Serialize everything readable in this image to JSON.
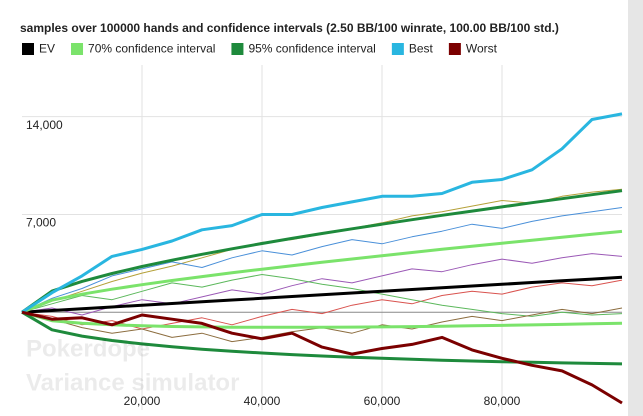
{
  "chart_data": {
    "type": "line",
    "title": "samples over 100000 hands and confidence intervals (2.50 BB/100 winrate, 100.00 BB/100 std.)",
    "watermark": [
      "Pokerdope",
      "Variance simulator"
    ],
    "x": [
      0,
      5000,
      10000,
      15000,
      20000,
      25000,
      30000,
      35000,
      40000,
      45000,
      50000,
      55000,
      60000,
      65000,
      70000,
      75000,
      80000,
      85000,
      90000,
      95000,
      100000
    ],
    "xlim": [
      0,
      100000
    ],
    "xticks": [
      {
        "value": 20000,
        "label": "20,000"
      },
      {
        "value": 40000,
        "label": "40,000"
      },
      {
        "value": 60000,
        "label": "60,000"
      },
      {
        "value": 80000,
        "label": "80,000"
      }
    ],
    "ylim": [
      -7000,
      17700
    ],
    "yticks": [
      {
        "value": 7000,
        "label": "7,000"
      },
      {
        "value": 14000,
        "label": "14,000"
      }
    ],
    "grid": true,
    "series": [
      {
        "color": "#b5a13a",
        "values": [
          0,
          800,
          1500,
          2200,
          2800,
          3300,
          3900,
          4500,
          5000,
          5200,
          5600,
          6000,
          6400,
          6900,
          7200,
          7600,
          8000,
          7800,
          8300,
          8600,
          8800
        ]
      },
      {
        "color": "#9b59b6",
        "values": [
          0,
          300,
          -200,
          400,
          900,
          600,
          1100,
          1600,
          1300,
          1900,
          2400,
          2100,
          2600,
          3100,
          2900,
          3400,
          3800,
          3500,
          3900,
          4200,
          4000
        ]
      },
      {
        "color": "#d9534f",
        "values": [
          0,
          -300,
          -900,
          -600,
          -1200,
          -800,
          -400,
          -900,
          -300,
          200,
          -100,
          500,
          900,
          600,
          1200,
          1500,
          1300,
          1800,
          2100,
          1900,
          2300
        ]
      },
      {
        "color": "#5cb85c",
        "values": [
          0,
          600,
          1200,
          900,
          1500,
          2100,
          1800,
          2300,
          2700,
          2400,
          2000,
          1700,
          1300,
          900,
          500,
          200,
          -100,
          -300,
          0,
          -200,
          -100
        ]
      },
      {
        "color": "#8c6d3f",
        "values": [
          0,
          -500,
          -1100,
          -1500,
          -1200,
          -1800,
          -1500,
          -2100,
          -1800,
          -1400,
          -1100,
          -1500,
          -900,
          -1200,
          -700,
          -300,
          -600,
          -200,
          200,
          -100,
          300
        ]
      },
      {
        "color": "#4a90d9",
        "values": [
          0,
          1000,
          1700,
          2600,
          3100,
          3600,
          3200,
          3900,
          4400,
          4100,
          4700,
          5200,
          4900,
          5400,
          5800,
          6300,
          6000,
          6500,
          6900,
          7200,
          7500
        ]
      },
      {
        "name": "EV",
        "color": "#000000",
        "values": [
          0,
          125,
          250,
          375,
          500,
          625,
          750,
          875,
          1000,
          1125,
          1250,
          1375,
          1500,
          1625,
          1750,
          1875,
          2000,
          2125,
          2250,
          2375,
          2500
        ]
      },
      {
        "name": "70% confidence interval",
        "color": "#7be36b",
        "values": [
          0,
          860,
          1290,
          1649,
          1971,
          2269,
          2551,
          2821,
          3080,
          3331,
          3575,
          3814,
          4047,
          4277,
          4502,
          4724,
          4941,
          5157,
          5370,
          5580,
          5788
        ],
        "lower": [
          0,
          -610,
          -790,
          -899,
          -971,
          -1019,
          -1051,
          -1071,
          -1080,
          -1081,
          -1075,
          -1064,
          -1047,
          -1027,
          -1002,
          -974,
          -941,
          -907,
          -870,
          -830,
          -788
        ]
      },
      {
        "name": "95% confidence interval",
        "color": "#1e8a3c",
        "values": [
          0,
          1511,
          2210,
          2776,
          3271,
          3724,
          4145,
          4542,
          4920,
          5282,
          5633,
          5971,
          6300,
          6623,
          6936,
          7243,
          7543,
          7838,
          8130,
          8416,
          8698
        ],
        "lower": [
          0,
          -1261,
          -1710,
          -2026,
          -2271,
          -2474,
          -2645,
          -2792,
          -2920,
          -3032,
          -3133,
          -3221,
          -3300,
          -3373,
          -3436,
          -3493,
          -3543,
          -3588,
          -3630,
          -3666,
          -3698
        ]
      },
      {
        "name": "Best",
        "color": "#29b6e0",
        "values": [
          0,
          1400,
          2600,
          4000,
          4500,
          5100,
          5900,
          6200,
          7000,
          7000,
          7500,
          7900,
          8300,
          8300,
          8500,
          9300,
          9500,
          10200,
          11700,
          13800,
          14200
        ]
      },
      {
        "name": "Worst",
        "color": "#7b0000",
        "values": [
          0,
          -500,
          -400,
          -900,
          -200,
          -500,
          -800,
          -1500,
          -1900,
          -1500,
          -2500,
          -3000,
          -2600,
          -2300,
          -1800,
          -2700,
          -3300,
          -3800,
          -4200,
          -5200,
          -6500
        ]
      }
    ]
  }
}
